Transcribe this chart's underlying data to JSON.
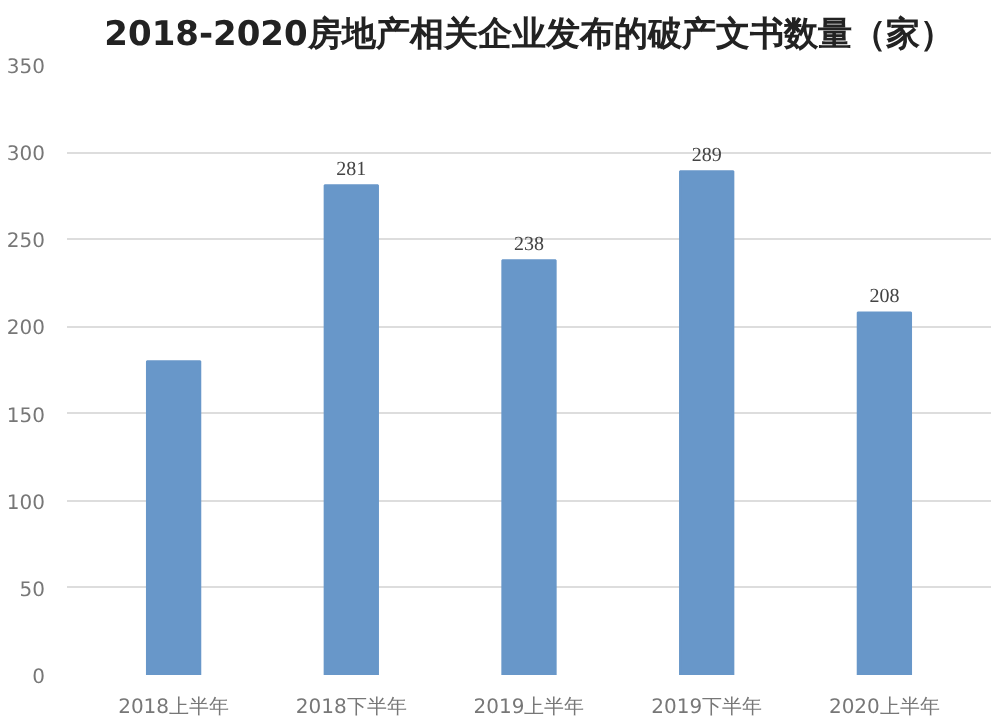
{
  "chart_data": {
    "type": "bar",
    "title": "2018-2020房地产相关企业发布的破产文书数量（家）",
    "categories": [
      "2018上半年",
      "2018下半年",
      "2019上半年",
      "2019下半年",
      "2020上半年"
    ],
    "values": [
      180,
      281,
      238,
      289,
      208
    ],
    "value_labels": [
      null,
      "281",
      "238",
      "289",
      "208"
    ],
    "color": "#6897c9",
    "ylim": [
      0,
      350
    ],
    "yticks": [
      0,
      50,
      100,
      150,
      200,
      250,
      300,
      350
    ],
    "grid": "y"
  }
}
